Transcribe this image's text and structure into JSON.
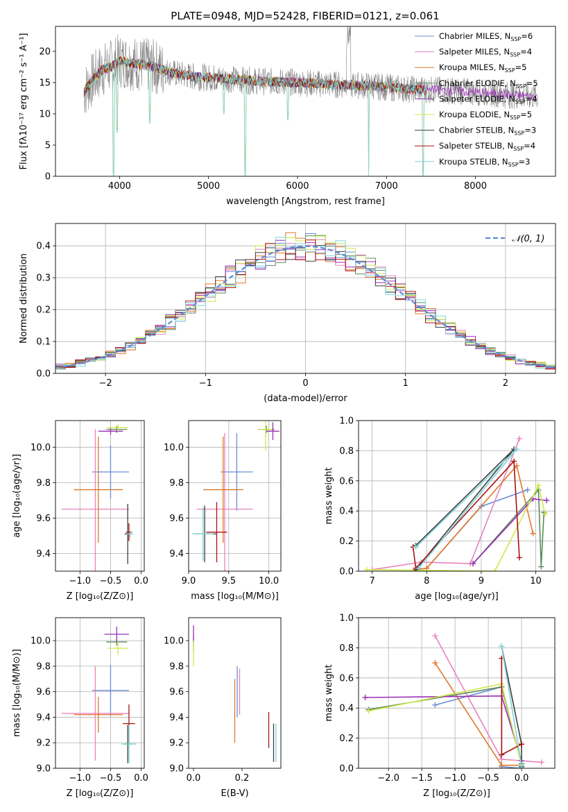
{
  "title": "PLATE=0948, MJD=52428, FIBERID=0121, z=0.061",
  "colors": {
    "Chabrier MILES": "#6a8bd6",
    "Salpeter MILES": "#e882be",
    "Kroupa MILES": "#e0782a",
    "Chabrier ELODIE": "#5c8a5a",
    "Salpeter ELODIE": "#9a2fb5",
    "Kroupa ELODIE": "#cfe84a",
    "Chabrier STELIB": "#3d3d3d",
    "Salpeter STELIB": "#aa1111",
    "Kroupa STELIB": "#7fd4d8",
    "observed_spectrum": "#808080",
    "normal_curve": "#5b8ad6",
    "grid": "#b0b0b0"
  },
  "chart_data": [
    {
      "id": "spectrum",
      "type": "line",
      "xlabel": "wavelength [Angstrom, rest frame]",
      "ylabel": "Flux [fλ10⁻¹⁷ erg cm⁻² s⁻¹ A⁻¹]",
      "xlim": [
        3280,
        8900
      ],
      "ylim": [
        0,
        24
      ],
      "xticks": [
        4000,
        5000,
        6000,
        7000,
        8000
      ],
      "yticks": [
        0,
        5,
        10,
        15,
        20
      ],
      "grid": false,
      "legend_position": "top-right",
      "legend": [
        {
          "name": "Chabrier MILES",
          "nssp": "6"
        },
        {
          "name": "Salpeter MILES",
          "nssp": "4"
        },
        {
          "name": "Kroupa MILES",
          "nssp": "5"
        },
        {
          "name": "Chabrier ELODIE",
          "nssp": "5"
        },
        {
          "name": "Salpeter ELODIE",
          "nssp": "4"
        },
        {
          "name": "Kroupa ELODIE",
          "nssp": "5"
        },
        {
          "name": "Chabrier STELIB",
          "nssp": "3"
        },
        {
          "name": "Salpeter STELIB",
          "nssp": "4"
        },
        {
          "name": "Kroupa STELIB",
          "nssp": "3"
        }
      ],
      "continuum": {
        "x": [
          3600,
          3700,
          3800,
          3900,
          4000,
          4200,
          4400,
          4600,
          4800,
          5000,
          5300,
          5600,
          6000,
          6400,
          6800,
          7200,
          7600,
          8000,
          8400,
          8700
        ],
        "y": [
          13.5,
          15.5,
          17.0,
          17.5,
          18.5,
          18.0,
          17.5,
          16.5,
          16.0,
          15.8,
          15.5,
          15.2,
          15.0,
          14.7,
          14.5,
          14.0,
          13.8,
          13.5,
          13.0,
          12.8
        ]
      },
      "absorption_features": [
        {
          "x": 3933,
          "depth_to": 0.0
        },
        {
          "x": 3970,
          "depth_to": 7.0
        },
        {
          "x": 4340,
          "depth_to": 8.5
        },
        {
          "x": 5175,
          "depth_to": 10.0
        },
        {
          "x": 5415,
          "depth_to": 0.0
        },
        {
          "x": 5890,
          "depth_to": 9.0
        },
        {
          "x": 6800,
          "depth_to": 0.0
        },
        {
          "x": 7410,
          "depth_to": 0.0
        }
      ]
    },
    {
      "id": "residuals",
      "type": "bar",
      "xlabel": "(data-model)/error",
      "ylabel": "Normed distribution",
      "xlim": [
        -2.5,
        2.5
      ],
      "ylim": [
        0,
        0.47
      ],
      "xticks": [
        -2,
        -1,
        0,
        1,
        2
      ],
      "yticks": [
        0.0,
        0.1,
        0.2,
        0.3,
        0.4
      ],
      "grid": true,
      "legend_position": "top-right",
      "normal_label": "𝒩(0, 1)",
      "bin_width": 0.1
    },
    {
      "id": "age_vs_Z",
      "type": "scatter",
      "xlabel": "Z [log₁₀(Z/Z⊙)]",
      "ylabel": "age  [log₁₀(age/yr)]",
      "xlim": [
        -1.4,
        0.05
      ],
      "ylim": [
        9.3,
        10.15
      ],
      "xticks": [
        -1.0,
        -0.5,
        0.0
      ],
      "yticks": [
        9.4,
        9.6,
        9.8,
        10.0
      ],
      "grid": true,
      "points": [
        {
          "model": "Chabrier MILES",
          "x": -0.5,
          "xerr": 0.3,
          "y": 9.86,
          "yerr": 0.15
        },
        {
          "model": "Salpeter MILES",
          "x": -0.75,
          "xerr": 0.55,
          "y": 9.65,
          "yerr": 0.45
        },
        {
          "model": "Kroupa MILES",
          "x": -0.7,
          "xerr": 0.4,
          "y": 9.76,
          "yerr": 0.3
        },
        {
          "model": "Chabrier ELODIE",
          "x": -0.4,
          "xerr": 0.17,
          "y": 10.1,
          "yerr": 0.02
        },
        {
          "model": "Salpeter ELODIE",
          "x": -0.5,
          "xerr": 0.2,
          "y": 10.09,
          "yerr": 0.02
        },
        {
          "model": "Kroupa ELODIE",
          "x": -0.38,
          "xerr": 0.17,
          "y": 10.11,
          "yerr": 0.02
        },
        {
          "model": "Chabrier STELIB",
          "x": -0.22,
          "xerr": 0.05,
          "y": 9.51,
          "yerr": 0.17
        },
        {
          "model": "Salpeter STELIB",
          "x": -0.2,
          "xerr": 0.05,
          "y": 9.52,
          "yerr": 0.05
        },
        {
          "model": "Kroupa STELIB",
          "x": -0.18,
          "xerr": 0.05,
          "y": 9.51,
          "yerr": 0.02
        }
      ]
    },
    {
      "id": "age_vs_mass",
      "type": "scatter",
      "xlabel": "mass [log₁₀(M/M⊙)]",
      "ylabel": "",
      "xlim": [
        9.0,
        10.15
      ],
      "ylim": [
        9.3,
        10.15
      ],
      "xticks": [
        9.0,
        9.5,
        10.0
      ],
      "yticks": [
        9.4,
        9.6,
        9.8,
        10.0
      ],
      "grid": true,
      "points": [
        {
          "model": "Chabrier MILES",
          "x": 9.6,
          "xerr": 0.2,
          "y": 9.86,
          "yerr": 0.22
        },
        {
          "model": "Salpeter MILES",
          "x": 9.45,
          "xerr": 0.35,
          "y": 9.65,
          "yerr": 0.43
        },
        {
          "model": "Kroupa MILES",
          "x": 9.43,
          "xerr": 0.25,
          "y": 9.76,
          "yerr": 0.3
        },
        {
          "model": "Chabrier ELODIE",
          "x": 9.97,
          "xerr": 0.1,
          "y": 10.1,
          "yerr": 0.02
        },
        {
          "model": "Salpeter ELODIE",
          "x": 10.05,
          "xerr": 0.08,
          "y": 10.09,
          "yerr": 0.05
        },
        {
          "model": "Kroupa ELODIE",
          "x": 9.96,
          "xerr": 0.08,
          "y": 10.1,
          "yerr": 0.12
        },
        {
          "model": "Chabrier STELIB",
          "x": 9.2,
          "xerr": 0.15,
          "y": 9.51,
          "yerr": 0.16
        },
        {
          "model": "Salpeter STELIB",
          "x": 9.35,
          "xerr": 0.13,
          "y": 9.52,
          "yerr": 0.17
        },
        {
          "model": "Kroupa STELIB",
          "x": 9.18,
          "xerr": 0.13,
          "y": 9.51,
          "yerr": 0.15
        }
      ]
    },
    {
      "id": "weight_vs_age",
      "type": "line",
      "xlabel": "age  [log₁₀(age/yr)]",
      "ylabel": "mass weight",
      "xlim": [
        6.75,
        10.35
      ],
      "ylim": [
        0.0,
        1.0
      ],
      "xticks": [
        7,
        8,
        9,
        10
      ],
      "yticks": [
        0.0,
        0.2,
        0.4,
        0.6,
        0.8,
        1.0
      ],
      "grid": true,
      "series": [
        {
          "model": "Chabrier MILES",
          "x": [
            7.8,
            8.0,
            9.0,
            9.85
          ],
          "y": [
            0.01,
            0.02,
            0.43,
            0.54
          ]
        },
        {
          "model": "Salpeter MILES",
          "x": [
            7.0,
            7.9,
            8.8,
            9.7
          ],
          "y": [
            0.01,
            0.06,
            0.05,
            0.88
          ]
        },
        {
          "model": "Kroupa MILES",
          "x": [
            7.8,
            8.0,
            9.65,
            9.95
          ],
          "y": [
            0.01,
            0.02,
            0.7,
            0.25
          ]
        },
        {
          "model": "Chabrier ELODIE",
          "x": [
            8.85,
            10.05,
            10.1,
            10.15
          ],
          "y": [
            0.05,
            0.54,
            0.03,
            0.39
          ]
        },
        {
          "model": "Salpeter ELODIE",
          "x": [
            8.85,
            9.95,
            10.2
          ],
          "y": [
            0.05,
            0.48,
            0.47
          ]
        },
        {
          "model": "Kroupa ELODIE",
          "x": [
            6.9,
            9.25,
            10.05,
            10.17
          ],
          "y": [
            0.01,
            0.0,
            0.57,
            0.38
          ]
        },
        {
          "model": "Chabrier STELIB",
          "x": [
            7.8,
            9.6,
            7.8
          ],
          "y": [
            0.17,
            0.81,
            0.01
          ]
        },
        {
          "model": "Salpeter STELIB",
          "x": [
            7.75,
            7.8,
            9.6,
            9.7
          ],
          "y": [
            0.16,
            0.02,
            0.73,
            0.09
          ]
        },
        {
          "model": "Kroupa STELIB",
          "x": [
            7.8,
            9.65,
            7.85
          ],
          "y": [
            0.16,
            0.81,
            0.02
          ]
        }
      ]
    },
    {
      "id": "mass_vs_Z",
      "type": "scatter",
      "xlabel": "Z [log₁₀(Z/Z⊙)]",
      "ylabel": "mass [log₁₀(M/M⊙)]",
      "xlim": [
        -1.4,
        0.05
      ],
      "ylim": [
        9.0,
        10.18
      ],
      "xticks": [
        -1.0,
        -0.5,
        0.0
      ],
      "yticks": [
        9.0,
        9.2,
        9.4,
        9.6,
        9.8,
        10.0
      ],
      "grid": true,
      "points": [
        {
          "model": "Chabrier MILES",
          "x": -0.5,
          "xerr": 0.3,
          "y": 9.61,
          "yerr": 0.2
        },
        {
          "model": "Salpeter MILES",
          "x": -0.75,
          "xerr": 0.55,
          "y": 9.43,
          "yerr": 0.37
        },
        {
          "model": "Kroupa MILES",
          "x": -0.7,
          "xerr": 0.4,
          "y": 9.42,
          "yerr": 0.14
        },
        {
          "model": "Chabrier ELODIE",
          "x": -0.4,
          "xerr": 0.17,
          "y": 9.99,
          "yerr": 0.03
        },
        {
          "model": "Salpeter ELODIE",
          "x": -0.4,
          "xerr": 0.2,
          "y": 10.05,
          "yerr": 0.06
        },
        {
          "model": "Kroupa ELODIE",
          "x": -0.38,
          "xerr": 0.17,
          "y": 9.94,
          "yerr": 0.05
        },
        {
          "model": "Chabrier STELIB",
          "x": -0.22,
          "xerr": 0.05,
          "y": 9.19,
          "yerr": 0.15
        },
        {
          "model": "Salpeter STELIB",
          "x": -0.2,
          "xerr": 0.1,
          "y": 9.35,
          "yerr": 0.15
        },
        {
          "model": "Kroupa STELIB",
          "x": -0.2,
          "xerr": 0.12,
          "y": 9.19,
          "yerr": 0.15
        }
      ]
    },
    {
      "id": "mass_vs_ebv",
      "type": "scatter",
      "xlabel": "E(B-V)",
      "ylabel": "",
      "xlim": [
        -0.02,
        0.36
      ],
      "ylim": [
        9.0,
        10.18
      ],
      "xticks": [
        0.0,
        0.2
      ],
      "yticks": [
        9.0,
        9.2,
        9.4,
        9.6,
        9.8,
        10.0
      ],
      "grid": false,
      "points": [
        {
          "model": "Chabrier MILES",
          "x": 0.18,
          "y": 9.6,
          "yerr": 0.2
        },
        {
          "model": "Salpeter MILES",
          "x": 0.19,
          "y": 9.6,
          "yerr": 0.18
        },
        {
          "model": "Kroupa MILES",
          "x": 0.17,
          "y": 9.45,
          "yerr": 0.25
        },
        {
          "model": "Chabrier ELODIE",
          "x": 0.0,
          "y": 9.98,
          "yerr": 0.06
        },
        {
          "model": "Salpeter ELODIE",
          "x": 0.0,
          "y": 10.05,
          "yerr": 0.07
        },
        {
          "model": "Kroupa ELODIE",
          "x": 0.0,
          "y": 9.9,
          "yerr": 0.1
        },
        {
          "model": "Chabrier STELIB",
          "x": 0.33,
          "y": 9.2,
          "yerr": 0.15
        },
        {
          "model": "Salpeter STELIB",
          "x": 0.31,
          "y": 9.3,
          "yerr": 0.14
        },
        {
          "model": "Kroupa STELIB",
          "x": 0.34,
          "y": 9.2,
          "yerr": 0.15
        }
      ]
    },
    {
      "id": "weight_vs_Z",
      "type": "line",
      "xlabel": "Z [log₁₀(Z/Z⊙)]",
      "ylabel": "mass weight",
      "xlim": [
        -2.45,
        0.5
      ],
      "ylim": [
        0.0,
        1.0
      ],
      "xticks": [
        -2.0,
        -1.5,
        -1.0,
        -0.5,
        0.0
      ],
      "yticks": [
        0.0,
        0.2,
        0.4,
        0.6,
        0.8,
        1.0
      ],
      "grid": true,
      "series": [
        {
          "model": "Chabrier MILES",
          "x": [
            -1.3,
            -0.3,
            -0.3,
            0.0
          ],
          "y": [
            0.42,
            0.54,
            0.01,
            0.0
          ]
        },
        {
          "model": "Salpeter MILES",
          "x": [
            -1.3,
            -0.3,
            0.3
          ],
          "y": [
            0.88,
            0.06,
            0.04
          ]
        },
        {
          "model": "Kroupa MILES",
          "x": [
            -1.3,
            -0.3,
            0.0
          ],
          "y": [
            0.7,
            0.02,
            0.02
          ]
        },
        {
          "model": "Chabrier ELODIE",
          "x": [
            -2.3,
            -0.3,
            0.0
          ],
          "y": [
            0.39,
            0.54,
            0.03
          ]
        },
        {
          "model": "Salpeter ELODIE",
          "x": [
            -2.35,
            -0.3,
            0.0
          ],
          "y": [
            0.47,
            0.48,
            0.05
          ]
        },
        {
          "model": "Kroupa ELODIE",
          "x": [
            -2.3,
            -0.3,
            0.0
          ],
          "y": [
            0.38,
            0.56,
            0.02
          ]
        },
        {
          "model": "Chabrier STELIB",
          "x": [
            -0.3,
            0.0,
            0.0
          ],
          "y": [
            0.81,
            0.16,
            0.01
          ]
        },
        {
          "model": "Salpeter STELIB",
          "x": [
            -0.3,
            -0.3,
            0.0
          ],
          "y": [
            0.73,
            0.09,
            0.16
          ]
        },
        {
          "model": "Kroupa STELIB",
          "x": [
            -0.3,
            0.0,
            0.0
          ],
          "y": [
            0.81,
            0.02,
            0.0
          ]
        }
      ]
    }
  ]
}
